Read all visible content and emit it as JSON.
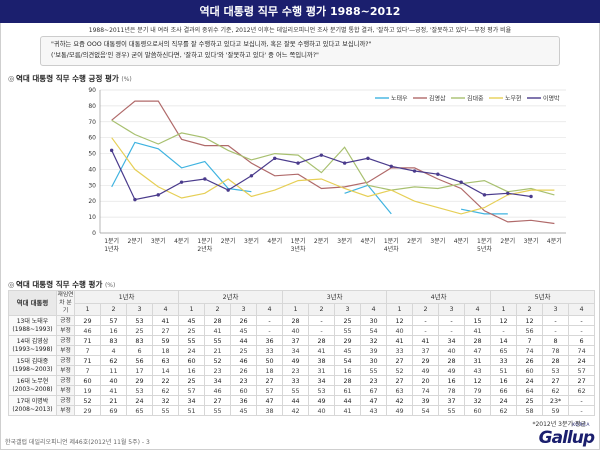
{
  "header": {
    "title": "역대 대통령 직무 수행 평가 1988~2012"
  },
  "subtitle": "1988~2011년은 분기 내 여러 조사 결과의 중위수 기준, 2012년 이후는 데일리오피니언 조사 분기별 통합 결과, '잘하고 있다'—긍정, '잘못하고 있다'—부정 평가 비율",
  "question": {
    "line1": "\"귀하는 요즘 OOO 대통령이 대통령으로서의 직무를 잘 수행하고 있다고 보십니까, 혹은 잘못 수행하고 있다고 보십니까?\"",
    "line2": "('보통/모름/의견없음'인 경우) 굳이 말씀하신다면, '잘하고 있다'와 '잘못하고 있다' 중 어느 쪽입니까?\""
  },
  "chart_section_title": "역대 대통령 직무 수행 긍정 평가",
  "chart_section_unit": "(%)",
  "table_section_title": "역대 대통령 직무 수행 평가",
  "table_section_unit": "(%)",
  "note": "*2012년 3분기 평균",
  "footer": "한국갤럽 데일리오피니언 제46호(2012년 11월 5주) - 3",
  "logo": {
    "korea": "KOREA",
    "word": "Gallup"
  },
  "colors": {
    "header_bg": "#1b1f6e",
    "노태우": "#3fb3e0",
    "김영삼": "#b06a6a",
    "김대중": "#a8c070",
    "노무현": "#e6cf56",
    "이명박": "#4a3b8c"
  },
  "chart_data": {
    "type": "line",
    "x": [
      "1분기\n1년차",
      "2분기",
      "3분기",
      "4분기",
      "1분기\n2년차",
      "2분기",
      "3분기",
      "4분기",
      "1분기\n3년차",
      "2분기",
      "3분기",
      "4분기",
      "1분기\n4년차",
      "2분기",
      "3분기",
      "4분기",
      "1분기\n5년차",
      "2분기",
      "3분기",
      "4분기"
    ],
    "ylim": [
      0,
      90
    ],
    "yticks": [
      0,
      10,
      20,
      30,
      40,
      50,
      60,
      70,
      80,
      90
    ],
    "series": [
      {
        "name": "노태우",
        "values": [
          29,
          57,
          53,
          41,
          45,
          28,
          26,
          null,
          28,
          null,
          25,
          30,
          12,
          null,
          null,
          15,
          12,
          12,
          null,
          null
        ]
      },
      {
        "name": "김영삼",
        "values": [
          71,
          83,
          83,
          59,
          55,
          55,
          44,
          36,
          37,
          28,
          29,
          32,
          41,
          41,
          34,
          28,
          14,
          7,
          8,
          6
        ]
      },
      {
        "name": "김대중",
        "values": [
          71,
          62,
          56,
          63,
          60,
          52,
          46,
          50,
          49,
          38,
          54,
          30,
          27,
          29,
          28,
          31,
          33,
          26,
          28,
          24
        ]
      },
      {
        "name": "노무현",
        "values": [
          60,
          40,
          29,
          22,
          25,
          34,
          23,
          27,
          33,
          34,
          28,
          23,
          27,
          20,
          16,
          12,
          16,
          24,
          27,
          27
        ]
      },
      {
        "name": "이명박",
        "values": [
          52,
          21,
          24,
          32,
          34,
          27,
          36,
          47,
          44,
          49,
          44,
          47,
          42,
          39,
          37,
          32,
          24,
          25,
          23,
          null
        ]
      }
    ]
  },
  "table": {
    "col_president": "역대 대통령",
    "col_eval": "재임연차 분기",
    "years": [
      "1년차",
      "2년차",
      "3년차",
      "4년차",
      "5년차"
    ],
    "quarters": [
      "1",
      "2",
      "3",
      "4",
      "1",
      "2",
      "3",
      "4",
      "1",
      "2",
      "3",
      "4",
      "1",
      "2",
      "3",
      "4",
      "1",
      "2",
      "3",
      "4"
    ],
    "pos_label": "긍정",
    "neg_label": "부정",
    "rows": [
      {
        "president": "13대 노태우 (1988~1993)",
        "pos": [
          "29",
          "57",
          "53",
          "41",
          "45",
          "28",
          "26",
          "-",
          "28",
          "-",
          "25",
          "30",
          "12",
          "-",
          "-",
          "15",
          "12",
          "12",
          "-",
          "-"
        ],
        "neg": [
          "46",
          "16",
          "25",
          "27",
          "25",
          "41",
          "45",
          "-",
          "40",
          "-",
          "55",
          "54",
          "40",
          "-",
          "-",
          "41",
          "-",
          "56",
          "-",
          "-"
        ]
      },
      {
        "president": "14대 김영삼 (1993~1998)",
        "pos": [
          "71",
          "83",
          "83",
          "59",
          "55",
          "55",
          "44",
          "36",
          "37",
          "28",
          "29",
          "32",
          "41",
          "41",
          "34",
          "28",
          "14",
          "7",
          "8",
          "6"
        ],
        "neg": [
          "7",
          "4",
          "6",
          "18",
          "24",
          "21",
          "25",
          "33",
          "34",
          "41",
          "45",
          "39",
          "33",
          "37",
          "40",
          "47",
          "65",
          "74",
          "78",
          "74"
        ]
      },
      {
        "president": "15대 김대중 (1998~2003)",
        "pos": [
          "71",
          "62",
          "56",
          "63",
          "60",
          "52",
          "46",
          "50",
          "49",
          "38",
          "54",
          "30",
          "27",
          "29",
          "28",
          "31",
          "33",
          "26",
          "28",
          "24"
        ],
        "neg": [
          "7",
          "11",
          "17",
          "14",
          "16",
          "23",
          "26",
          "18",
          "23",
          "31",
          "16",
          "55",
          "52",
          "49",
          "49",
          "43",
          "51",
          "60",
          "53",
          "57"
        ]
      },
      {
        "president": "16대 노무현 (2003~2008)",
        "pos": [
          "60",
          "40",
          "29",
          "22",
          "25",
          "34",
          "23",
          "27",
          "33",
          "34",
          "28",
          "23",
          "27",
          "20",
          "16",
          "12",
          "16",
          "24",
          "27",
          "27"
        ],
        "neg": [
          "19",
          "41",
          "53",
          "62",
          "57",
          "46",
          "60",
          "57",
          "55",
          "53",
          "61",
          "67",
          "63",
          "74",
          "78",
          "79",
          "66",
          "64",
          "62",
          "62"
        ]
      },
      {
        "president": "17대 이명박 (2008~2013)",
        "pos": [
          "52",
          "21",
          "24",
          "32",
          "34",
          "27",
          "36",
          "47",
          "44",
          "49",
          "44",
          "47",
          "42",
          "39",
          "37",
          "32",
          "24",
          "25",
          "23*",
          "-"
        ],
        "neg": [
          "29",
          "69",
          "65",
          "55",
          "51",
          "55",
          "45",
          "38",
          "42",
          "40",
          "41",
          "43",
          "49",
          "54",
          "55",
          "60",
          "62",
          "58",
          "59",
          "-"
        ]
      }
    ]
  }
}
